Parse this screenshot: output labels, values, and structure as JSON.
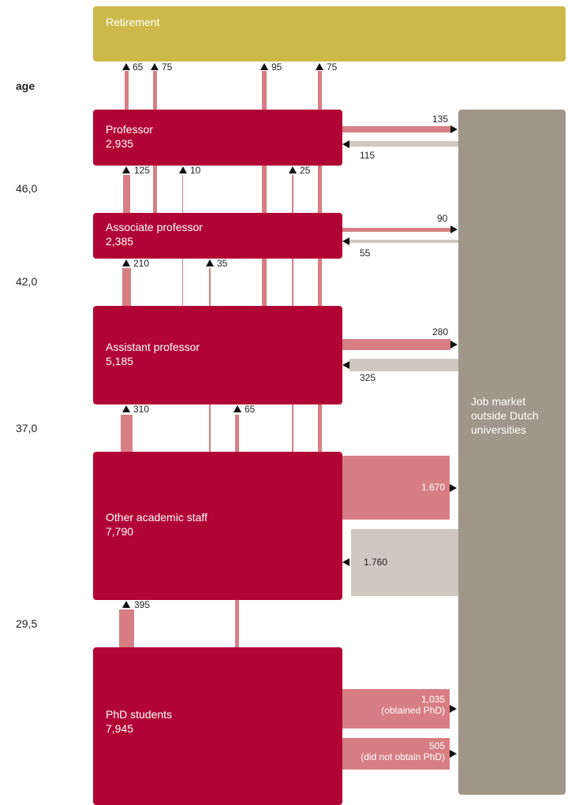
{
  "retirement": {
    "label": "Retirement"
  },
  "age_axis": {
    "title": "age",
    "ticks": [
      "46,0",
      "42,0",
      "37,0",
      "29,5"
    ]
  },
  "ranks": {
    "professor": {
      "name": "Professor",
      "count": "2,935"
    },
    "associate": {
      "name": "Associate professor",
      "count": "2,385"
    },
    "assistant": {
      "name": "Assistant professor",
      "count": "5,185"
    },
    "other": {
      "name": "Other academic staff",
      "count": "7,790"
    },
    "phd": {
      "name": "PhD students",
      "count": "7,945"
    }
  },
  "job_market": {
    "line1": "Job market",
    "line2": "outside Dutch",
    "line3": "universities"
  },
  "flows_up": {
    "prof_ret": "65",
    "assoc_ret": "75",
    "assist_ret": "95",
    "other_ret": "75",
    "assoc_prof": "125",
    "assist_prof": "10",
    "other_prof": "25",
    "assist_assoc": "210",
    "other_assoc": "35",
    "other_assist": "310",
    "phd_assist": "65",
    "phd_other": "395"
  },
  "flows_job": {
    "prof_out": "135",
    "prof_in": "115",
    "assoc_out": "90",
    "assoc_in": "55",
    "assist_out": "280",
    "assist_in": "325",
    "other_out": "1.670",
    "other_in": "1.760",
    "phd_out_obtained": "1,035",
    "phd_out_obtained_note": "(obtained PhD)",
    "phd_out_not": "505",
    "phd_out_not_note": "(did not obtain PhD)"
  },
  "colors": {
    "rank": "#b10535",
    "retirement": "#cdb94a",
    "job_market": "#a09689",
    "flow_out": "#d77e84",
    "flow_in": "#cfc8c0"
  }
}
